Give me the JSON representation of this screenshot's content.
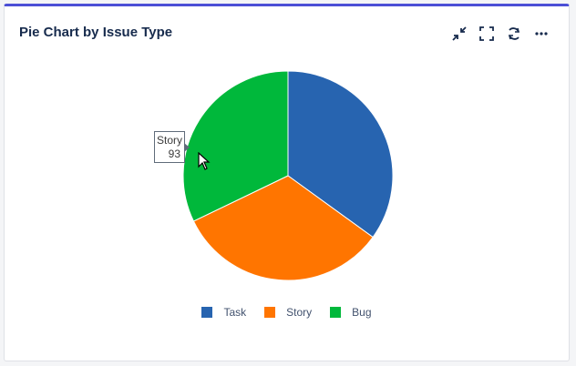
{
  "header": {
    "title": "Pie Chart by Issue Type"
  },
  "toolbar": [
    {
      "name": "minimize-icon"
    },
    {
      "name": "fullscreen-icon"
    },
    {
      "name": "refresh-icon"
    },
    {
      "name": "more-options-icon"
    }
  ],
  "tooltip": {
    "label": "Story",
    "value": "93"
  },
  "chart_data": {
    "type": "pie",
    "title": "Pie Chart by Issue Type",
    "categories": [
      "Task",
      "Story",
      "Bug"
    ],
    "values": [
      99,
      93,
      91
    ],
    "colors": [
      "#2764b0",
      "#ff7500",
      "#00b83b"
    ],
    "start_angle_deg": 0,
    "direction": "clockwise",
    "legend_position": "bottom"
  },
  "colors": {
    "accent": "#4b4fd6",
    "title_text": "#172b4d",
    "legend_text": "#42526e"
  }
}
